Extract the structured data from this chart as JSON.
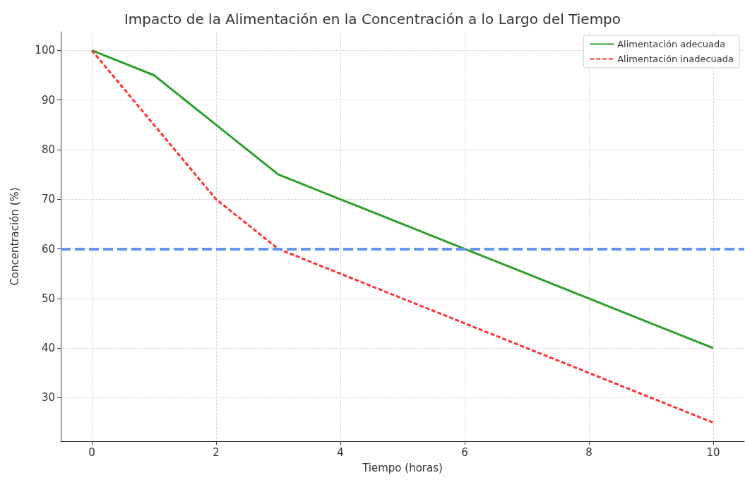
{
  "chart_data": {
    "type": "line",
    "title": "Impacto de la Alimentación en la Concentración a lo Largo del Tiempo",
    "xlabel": "Tiempo (horas)",
    "ylabel": "Concentración (%)",
    "x": [
      0,
      1,
      2,
      3,
      4,
      5,
      6,
      7,
      8,
      9,
      10
    ],
    "series": [
      {
        "name": "Alimentación adecuada",
        "color": "#2ca02c",
        "line_style": "solid",
        "values": [
          100,
          95,
          85,
          75,
          70,
          65,
          60,
          55,
          50,
          45,
          40
        ]
      },
      {
        "name": "Alimentación inadecuada",
        "color": "#ff3333",
        "line_style": "dashed",
        "values": [
          100,
          85,
          70,
          60,
          55,
          50,
          45,
          40,
          35,
          30,
          25
        ]
      }
    ],
    "ref_lines": [
      {
        "axis": "y",
        "value": 60,
        "color": "#6495ed",
        "line_style": "dashed"
      }
    ],
    "xlim": [
      -0.5,
      10.5
    ],
    "xticks": [
      0,
      2,
      4,
      6,
      8,
      10
    ],
    "ylim": [
      21.25,
      103.75
    ],
    "yticks": [
      30,
      40,
      50,
      60,
      70,
      80,
      90,
      100
    ],
    "grid": true,
    "legend": "top right",
    "marker": "none"
  }
}
